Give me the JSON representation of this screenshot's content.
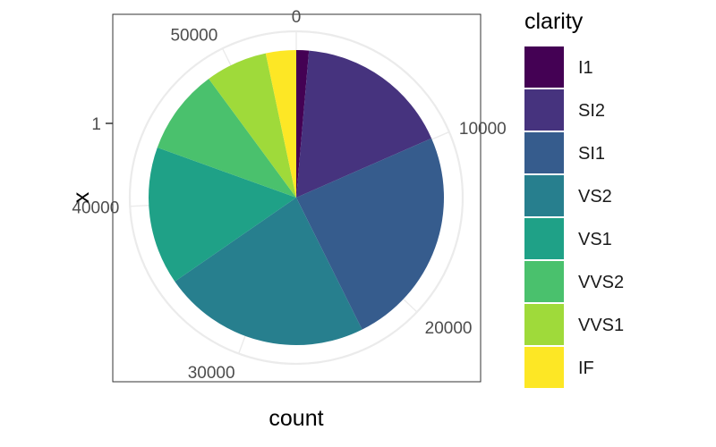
{
  "chart_data": {
    "type": "pie",
    "coord": "polar",
    "xlabel": "count",
    "ylabel": "x",
    "y_tick_label": "1",
    "radial_ticks": [
      0,
      10000,
      20000,
      30000,
      40000,
      50000
    ],
    "radial_tick_labels": [
      "0",
      "10000",
      "20000",
      "30000",
      "40000",
      "50000"
    ],
    "total": 53940,
    "legend": {
      "title": "clarity",
      "position": "right"
    },
    "categories": [
      "I1",
      "SI2",
      "SI1",
      "VS2",
      "VS1",
      "VVS2",
      "VVS1",
      "IF"
    ],
    "values": [
      741,
      9194,
      13065,
      12258,
      8171,
      5066,
      3655,
      1790
    ],
    "colors": [
      "#440154",
      "#46337E",
      "#365C8D",
      "#277F8E",
      "#1FA187",
      "#4AC16D",
      "#9FDA3A",
      "#FDE725"
    ],
    "grid": true,
    "panel_border": true
  }
}
